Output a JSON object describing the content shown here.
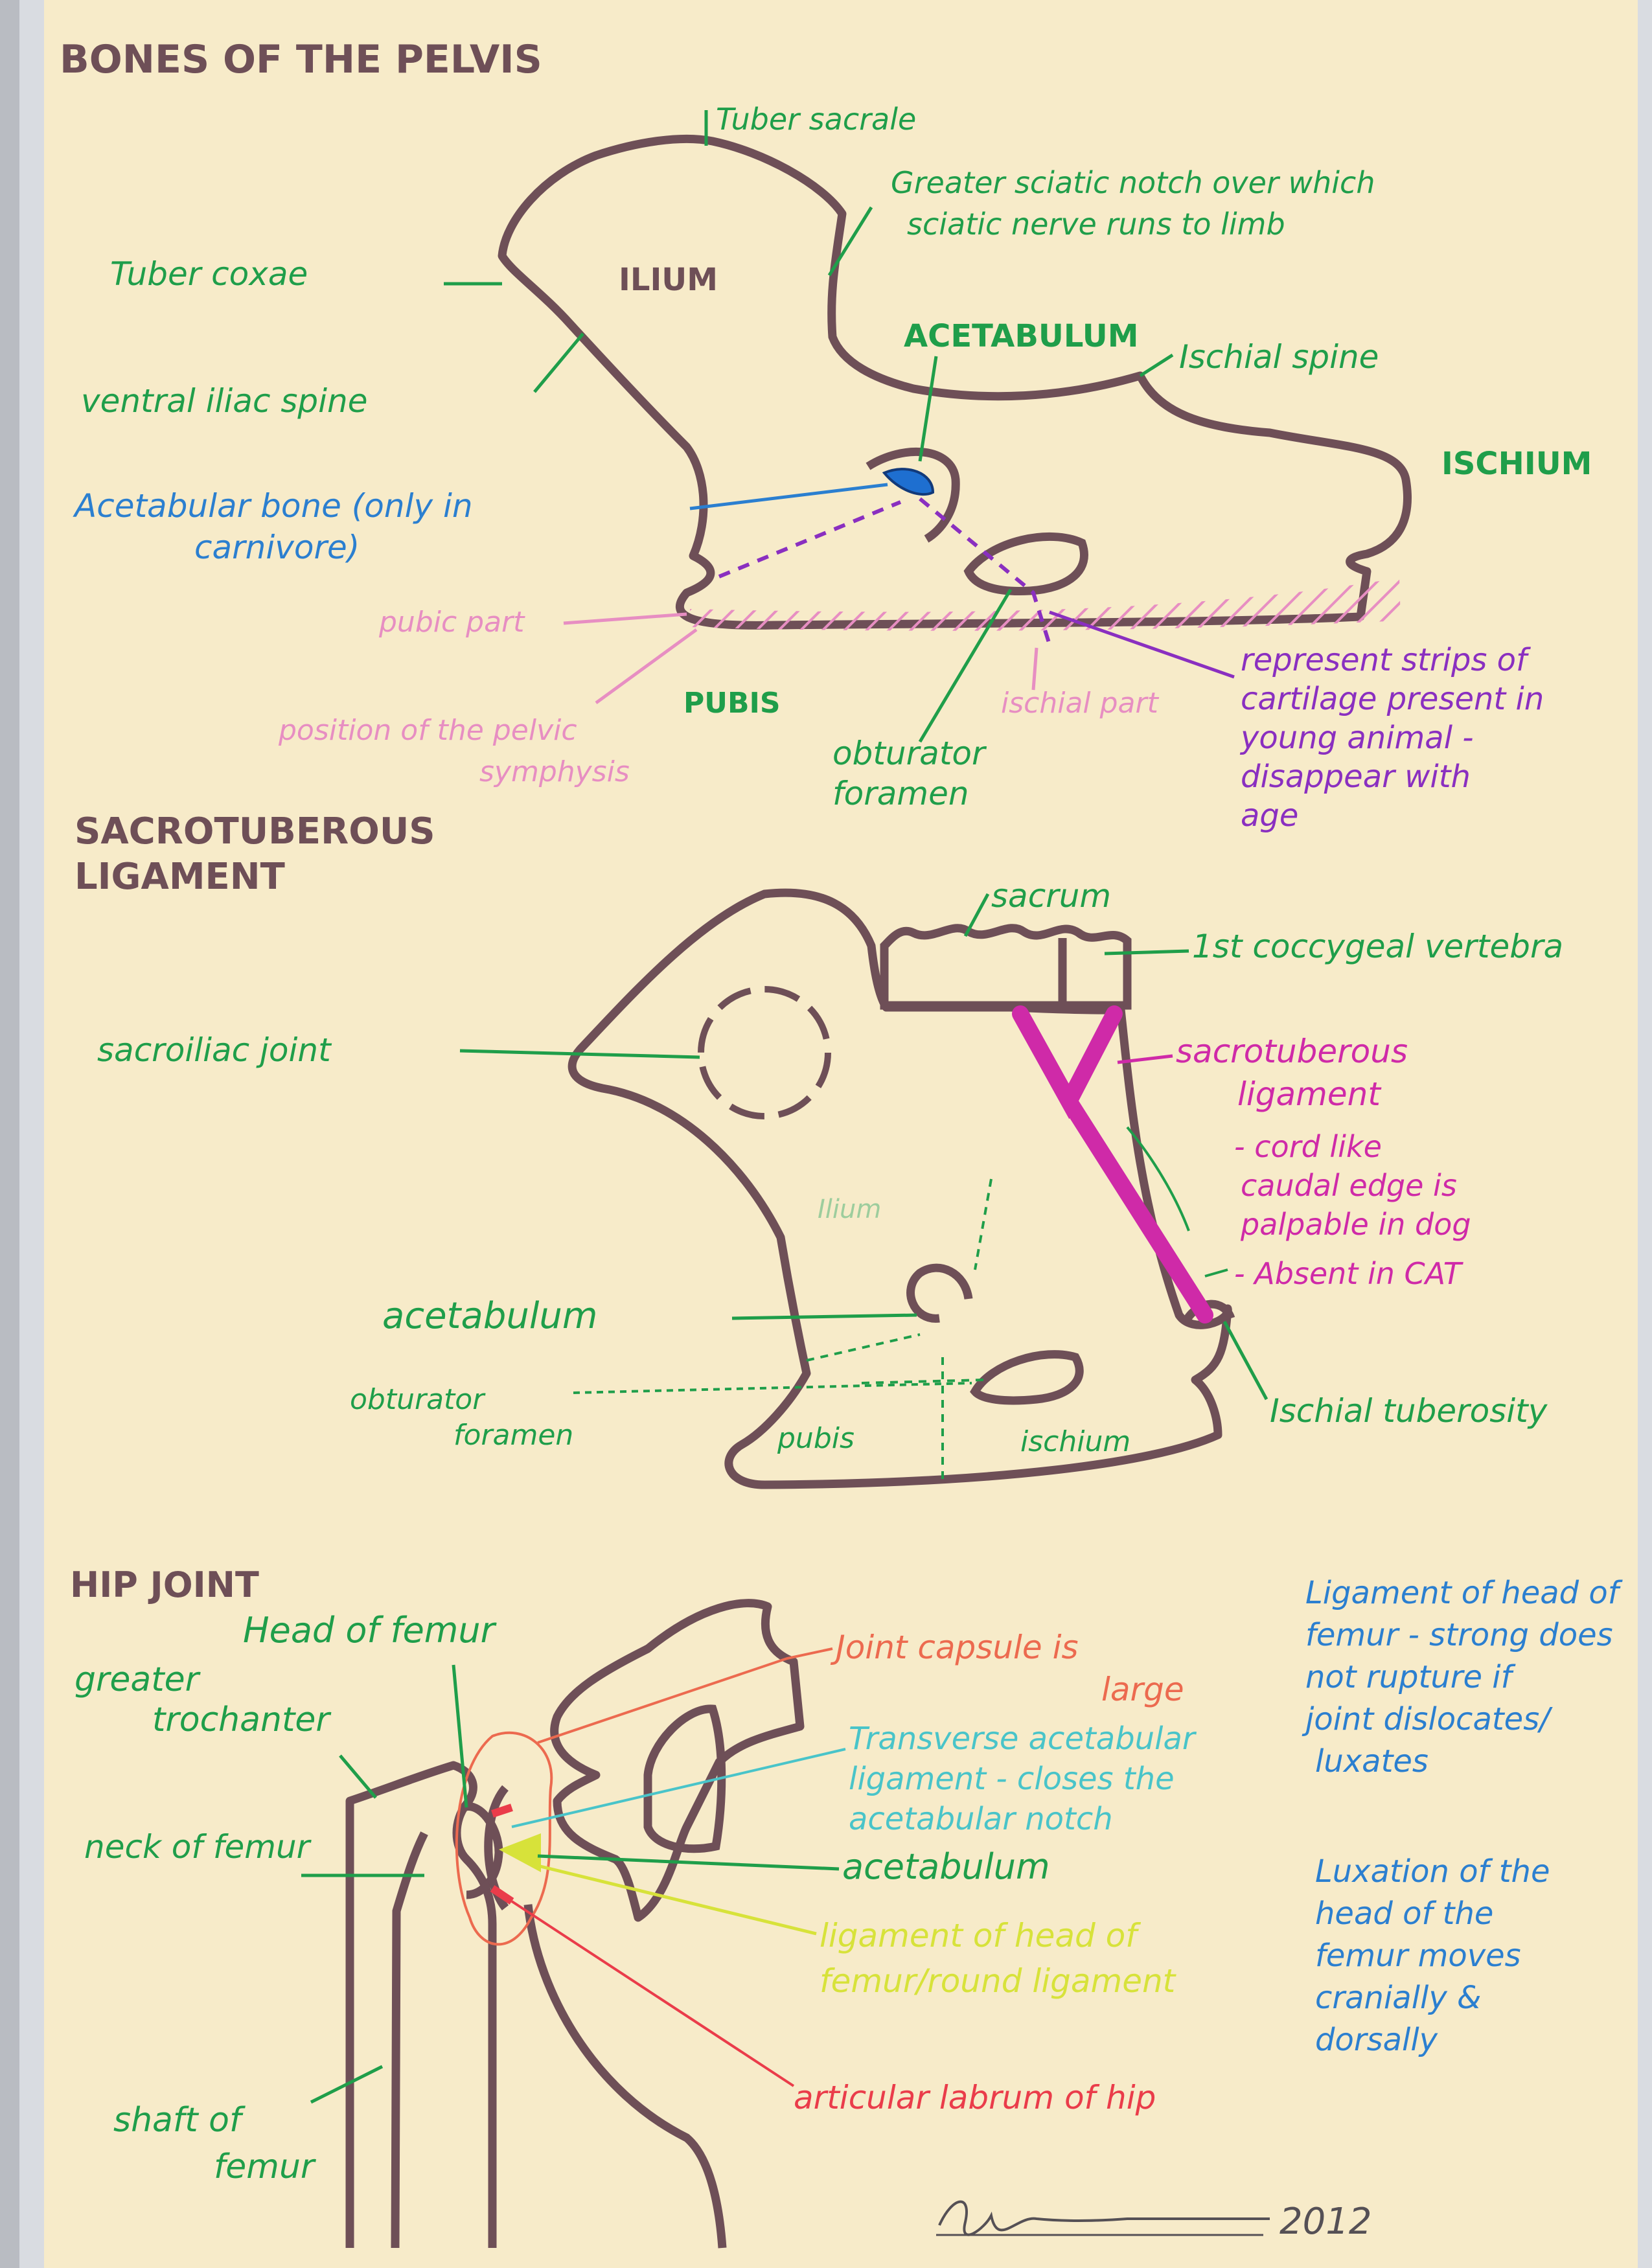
{
  "colors": {
    "paper": "#f7ebc9",
    "bone": "#6e4f57",
    "green": "#1f9e4a",
    "blue": "#2b7fd0",
    "pink": "#e78ec2",
    "magenta": "#cf2aa8",
    "purple": "#8a2fc0",
    "orange": "#ec6a4f",
    "red": "#ea3c4a",
    "cyan": "#49c4c9",
    "yellow": "#d7e23a"
  },
  "section1": {
    "heading": "BONES OF THE PELVIS",
    "ilium": "ILIUM",
    "ischium": "ISCHIUM",
    "pubis": "PUBIS",
    "acetabulum": "ACETABULUM",
    "tuber_sacrale": "Tuber sacrale",
    "greater_sciatic": [
      "Greater sciatic notch over which",
      "sciatic nerve runs to limb"
    ],
    "tuber_coxae": "Tuber coxae",
    "ventral_iliac": "ventral iliac spine",
    "ischial_spine": "Ischial spine",
    "acetabular_bone": [
      "Acetabular bone (only in",
      "carnivore)"
    ],
    "pubic_part": "pubic part",
    "pelvic_symphysis": [
      "position of the pelvic",
      "symphysis"
    ],
    "ischial_part": "ischial part",
    "obturator": [
      "obturator",
      "foramen"
    ],
    "cartilage": [
      "represent strips of",
      "cartilage present in",
      "young animal -",
      "disappear with",
      "age"
    ]
  },
  "section2": {
    "heading": [
      "SACROTUBEROUS",
      "LIGAMENT"
    ],
    "sacrum": "sacrum",
    "coccygeal": "1st coccygeal vertebra",
    "sacroiliac": "sacroiliac joint",
    "sacrotuberous": [
      "sacrotuberous",
      "ligament"
    ],
    "notes": [
      "- cord like",
      "caudal edge is",
      "palpable in dog",
      "- Absent in CAT"
    ],
    "ilium_faded": "Ilium",
    "acetabulum": "acetabulum",
    "obturator": [
      "obturator",
      "foramen"
    ],
    "pubis": "pubis",
    "ischium": "ischium",
    "ischial_tuberosity": "Ischial tuberosity"
  },
  "section3": {
    "heading": "HIP JOINT",
    "head_of_femur": "Head of femur",
    "greater_trochanter": [
      "greater",
      "trochanter"
    ],
    "neck_of_femur": "neck of femur",
    "shaft_of_femur": [
      "shaft of",
      "femur"
    ],
    "joint_capsule": [
      "Joint capsule is",
      "large"
    ],
    "transverse": [
      "Transverse acetabular",
      "ligament - closes the",
      "acetabular notch"
    ],
    "acetabulum": "acetabulum",
    "round_ligament": [
      "ligament of head of",
      "femur/round ligament"
    ],
    "labrum": "articular labrum of hip",
    "ligament_note": [
      "Ligament of head of",
      "femur - strong does",
      "not rupture if",
      "joint dislocates/",
      "luxates"
    ],
    "luxation_note": [
      "Luxation of the",
      "head of the",
      "femur moves",
      "cranially &",
      "dorsally"
    ]
  },
  "footer": {
    "year": "2012"
  }
}
